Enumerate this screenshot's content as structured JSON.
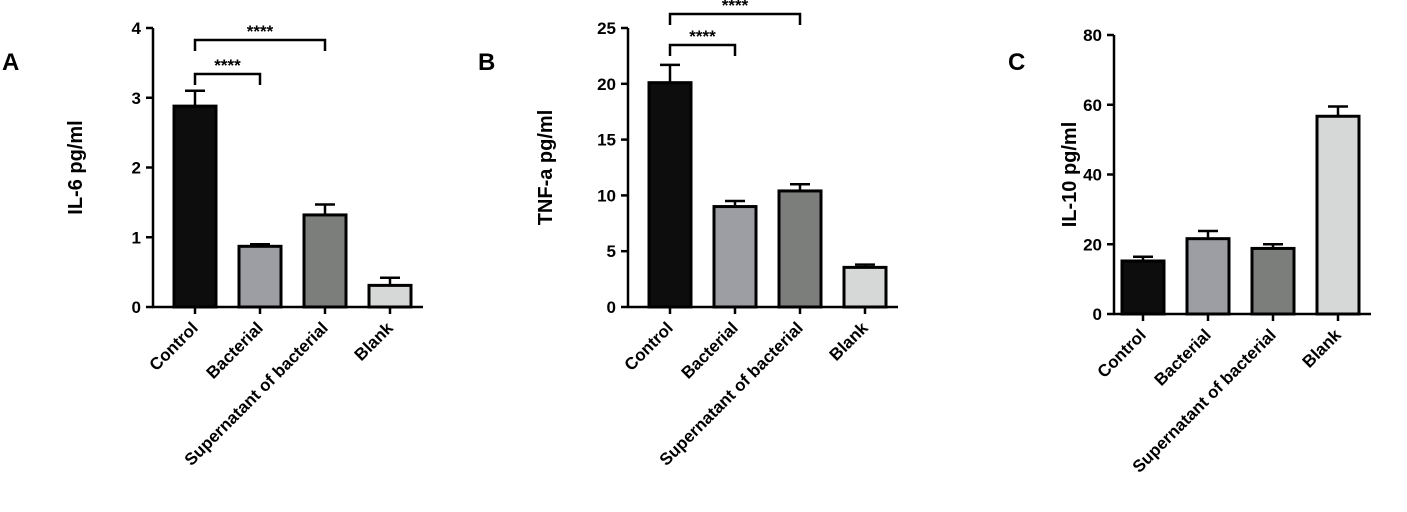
{
  "chart_data": [
    {
      "type": "bar",
      "panel": "A",
      "ylabel": "IL-6 pg/ml",
      "ylim": [
        0,
        4
      ],
      "yticks": [
        0,
        1,
        2,
        3,
        4
      ],
      "categories": [
        "Control",
        "Bacterial",
        "Supernatant of bacterial",
        "Blank"
      ],
      "values": [
        2.88,
        0.87,
        1.32,
        0.31
      ],
      "errors": [
        0.22,
        0.03,
        0.15,
        0.11
      ],
      "colors": [
        "#0d0d0d",
        "#9c9ea3",
        "#7c7e7c",
        "#d6d8d8"
      ],
      "significance": [
        {
          "from": 0,
          "to": 1,
          "label": "****"
        },
        {
          "from": 0,
          "to": 2,
          "label": "****"
        }
      ]
    },
    {
      "type": "bar",
      "panel": "B",
      "ylabel": "TNF-a pg/ml",
      "ylim": [
        0,
        25
      ],
      "yticks": [
        0,
        5,
        10,
        15,
        20,
        25
      ],
      "categories": [
        "Control",
        "Bacterial",
        "Supernatant of bacterial",
        "Blank"
      ],
      "values": [
        20.1,
        9.0,
        10.4,
        3.55
      ],
      "errors": [
        1.6,
        0.5,
        0.6,
        0.25
      ],
      "colors": [
        "#0d0d0d",
        "#9c9ea3",
        "#7c7e7c",
        "#d6d8d8"
      ],
      "significance": [
        {
          "from": 0,
          "to": 1,
          "label": "****"
        },
        {
          "from": 0,
          "to": 2,
          "label": "****"
        }
      ]
    },
    {
      "type": "bar",
      "panel": "C",
      "ylabel": "IL-10 pg/ml",
      "ylim": [
        0,
        80
      ],
      "yticks": [
        0,
        20,
        40,
        60,
        80
      ],
      "categories": [
        "Control",
        "Bacterial",
        "Supernatant of bacterial",
        "Blank"
      ],
      "values": [
        15.2,
        21.6,
        18.8,
        56.7
      ],
      "errors": [
        1.2,
        2.2,
        1.2,
        2.8
      ],
      "colors": [
        "#0d0d0d",
        "#9c9ea3",
        "#7c7e7c",
        "#d6d8d8"
      ],
      "significance": []
    }
  ]
}
